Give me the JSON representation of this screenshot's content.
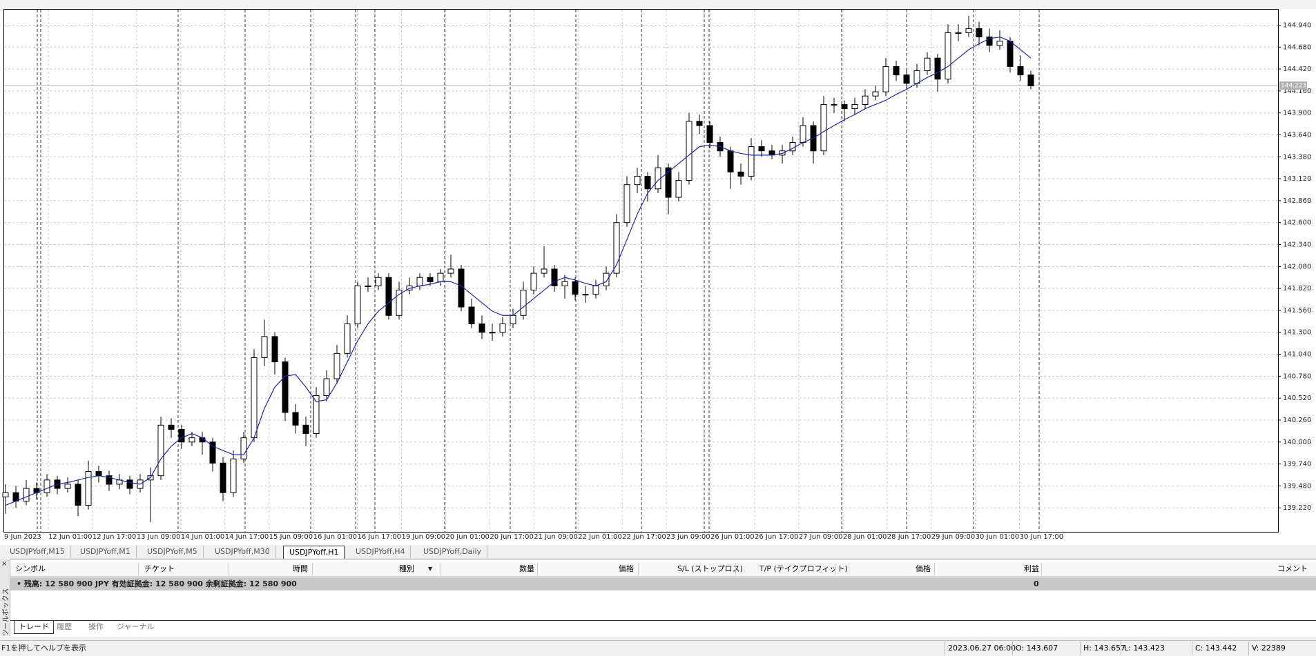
{
  "chart_data": {
    "type": "candlestick",
    "x_labels": [
      "9 Jun 2023",
      "12 Jun 01:00",
      "12 Jun 17:00",
      "13 Jun 09:00",
      "14 Jun 01:00",
      "14 Jun 17:00",
      "15 Jun 09:00",
      "16 Jun 01:00",
      "16 Jun 17:00",
      "19 Jun 09:00",
      "20 Jun 01:00",
      "20 Jun 17:00",
      "21 Jun 09:00",
      "22 Jun 01:00",
      "22 Jun 17:00",
      "23 Jun 09:00",
      "26 Jun 01:00",
      "26 Jun 17:00",
      "27 Jun 09:00",
      "28 Jun 01:00",
      "28 Jun 17:00",
      "29 Jun 09:00",
      "30 Jun 01:00",
      "30 Jun 17:00"
    ],
    "ylim": [
      138.96,
      145.14
    ],
    "yticks": [
      {
        "value": 144.94,
        "label": "144.940"
      },
      {
        "value": 144.68,
        "label": "144.680"
      },
      {
        "value": 144.42,
        "label": "144.420"
      },
      {
        "value": 144.16,
        "label": "144.160"
      },
      {
        "value": 143.9,
        "label": "143.900"
      },
      {
        "value": 143.64,
        "label": "143.640"
      },
      {
        "value": 143.38,
        "label": "143.380"
      },
      {
        "value": 143.12,
        "label": "143.120"
      },
      {
        "value": 142.86,
        "label": "142.860"
      },
      {
        "value": 142.6,
        "label": "142.600"
      },
      {
        "value": 142.34,
        "label": "142.340"
      },
      {
        "value": 142.08,
        "label": "142.080"
      },
      {
        "value": 141.82,
        "label": "141.820"
      },
      {
        "value": 141.56,
        "label": "141.560"
      },
      {
        "value": 141.3,
        "label": "141.300"
      },
      {
        "value": 141.04,
        "label": "141.040"
      },
      {
        "value": 140.78,
        "label": "140.780"
      },
      {
        "value": 140.52,
        "label": "140.520"
      },
      {
        "value": 140.26,
        "label": "140.260"
      },
      {
        "value": 140.0,
        "label": "140.000"
      },
      {
        "value": 139.74,
        "label": "139.740"
      },
      {
        "value": 139.48,
        "label": "139.480"
      },
      {
        "value": 139.22,
        "label": "139.220"
      }
    ],
    "grid": true,
    "current_price": 144.223,
    "candle_color": "#000000",
    "ma_color": "#1f1fbf",
    "candles": [
      [
        139.35,
        139.5,
        139.15,
        139.4
      ],
      [
        139.4,
        139.48,
        139.22,
        139.3
      ],
      [
        139.3,
        139.55,
        139.25,
        139.45
      ],
      [
        139.45,
        139.52,
        139.32,
        139.4
      ],
      [
        139.4,
        139.62,
        139.35,
        139.55
      ],
      [
        139.55,
        139.6,
        139.38,
        139.45
      ],
      [
        139.45,
        139.58,
        139.4,
        139.5
      ],
      [
        139.5,
        139.55,
        139.12,
        139.25
      ],
      [
        139.25,
        139.78,
        139.2,
        139.65
      ],
      [
        139.65,
        139.72,
        139.52,
        139.6
      ],
      [
        139.6,
        139.66,
        139.42,
        139.5
      ],
      [
        139.5,
        139.62,
        139.44,
        139.55
      ],
      [
        139.55,
        139.6,
        139.38,
        139.45
      ],
      [
        139.45,
        139.62,
        139.4,
        139.55
      ],
      [
        139.55,
        139.7,
        139.05,
        139.6
      ],
      [
        139.6,
        140.3,
        139.55,
        140.2
      ],
      [
        140.2,
        140.28,
        140.05,
        140.15
      ],
      [
        140.15,
        140.2,
        139.92,
        140.0
      ],
      [
        140.0,
        140.12,
        139.95,
        140.05
      ],
      [
        140.05,
        140.12,
        139.85,
        140.0
      ],
      [
        140.0,
        140.05,
        139.65,
        139.75
      ],
      [
        139.75,
        139.82,
        139.3,
        139.4
      ],
      [
        139.4,
        139.9,
        139.35,
        139.8
      ],
      [
        139.8,
        140.12,
        139.75,
        140.05
      ],
      [
        140.05,
        141.1,
        140.0,
        141.0
      ],
      [
        141.0,
        141.45,
        140.9,
        141.25
      ],
      [
        141.25,
        141.3,
        140.8,
        140.95
      ],
      [
        140.95,
        141.0,
        140.25,
        140.35
      ],
      [
        140.35,
        140.45,
        140.1,
        140.2
      ],
      [
        140.2,
        140.3,
        139.95,
        140.1
      ],
      [
        140.1,
        140.65,
        140.05,
        140.55
      ],
      [
        140.55,
        140.85,
        140.48,
        140.75
      ],
      [
        140.75,
        141.15,
        140.7,
        141.05
      ],
      [
        141.05,
        141.5,
        141.0,
        141.4
      ],
      [
        141.4,
        141.9,
        141.35,
        141.85
      ],
      [
        141.85,
        141.95,
        141.78,
        141.85
      ],
      [
        141.85,
        142.0,
        141.8,
        141.95
      ],
      [
        141.95,
        142.0,
        141.45,
        141.5
      ],
      [
        141.5,
        141.9,
        141.45,
        141.8
      ],
      [
        141.8,
        141.95,
        141.75,
        141.85
      ],
      [
        141.85,
        142.0,
        141.8,
        141.95
      ],
      [
        141.95,
        142.0,
        141.85,
        141.9
      ],
      [
        141.9,
        142.05,
        141.85,
        142.0
      ],
      [
        142.0,
        142.22,
        141.95,
        142.05
      ],
      [
        142.05,
        142.1,
        141.55,
        141.6
      ],
      [
        141.6,
        141.7,
        141.35,
        141.4
      ],
      [
        141.4,
        141.5,
        141.22,
        141.3
      ],
      [
        141.3,
        141.4,
        141.2,
        141.3
      ],
      [
        141.3,
        141.48,
        141.25,
        141.4
      ],
      [
        141.4,
        141.58,
        141.35,
        141.5
      ],
      [
        141.5,
        141.9,
        141.45,
        141.8
      ],
      [
        141.8,
        142.08,
        141.75,
        142.0
      ],
      [
        142.0,
        142.32,
        141.95,
        142.05
      ],
      [
        142.05,
        142.1,
        141.78,
        141.85
      ],
      [
        141.85,
        141.98,
        141.7,
        141.9
      ],
      [
        141.9,
        141.95,
        141.68,
        141.75
      ],
      [
        141.75,
        141.85,
        141.65,
        141.75
      ],
      [
        141.75,
        141.92,
        141.7,
        141.85
      ],
      [
        141.85,
        142.08,
        141.8,
        142.0
      ],
      [
        142.0,
        142.7,
        141.95,
        142.6
      ],
      [
        142.6,
        143.15,
        142.55,
        143.05
      ],
      [
        143.05,
        143.25,
        142.95,
        143.15
      ],
      [
        143.15,
        143.2,
        142.85,
        143.0
      ],
      [
        143.0,
        143.4,
        142.95,
        143.25
      ],
      [
        143.25,
        143.3,
        142.7,
        142.9
      ],
      [
        142.9,
        143.2,
        142.85,
        143.1
      ],
      [
        143.1,
        143.9,
        143.05,
        143.8
      ],
      [
        143.8,
        143.88,
        143.65,
        143.75
      ],
      [
        143.75,
        143.8,
        143.48,
        143.55
      ],
      [
        143.55,
        143.62,
        143.38,
        143.45
      ],
      [
        143.45,
        143.5,
        143.0,
        143.2
      ],
      [
        143.2,
        143.3,
        143.05,
        143.15
      ],
      [
        143.15,
        143.6,
        143.1,
        143.5
      ],
      [
        143.5,
        143.58,
        143.38,
        143.45
      ],
      [
        143.45,
        143.52,
        143.35,
        143.4
      ],
      [
        143.4,
        143.52,
        143.3,
        143.45
      ],
      [
        143.45,
        143.62,
        143.4,
        143.55
      ],
      [
        143.55,
        143.85,
        143.5,
        143.75
      ],
      [
        143.75,
        143.8,
        143.3,
        143.45
      ],
      [
        143.45,
        144.1,
        143.4,
        144.0
      ],
      [
        144.0,
        144.08,
        143.9,
        144.0
      ],
      [
        144.0,
        144.05,
        143.8,
        143.95
      ],
      [
        143.95,
        144.08,
        143.88,
        144.0
      ],
      [
        144.0,
        144.18,
        143.95,
        144.1
      ],
      [
        144.1,
        144.22,
        144.05,
        144.15
      ],
      [
        144.15,
        144.55,
        144.1,
        144.45
      ],
      [
        144.45,
        144.52,
        144.28,
        144.35
      ],
      [
        144.35,
        144.42,
        144.18,
        144.25
      ],
      [
        144.25,
        144.48,
        144.2,
        144.4
      ],
      [
        144.4,
        144.62,
        144.35,
        144.55
      ],
      [
        144.55,
        144.6,
        144.15,
        144.3
      ],
      [
        144.3,
        144.95,
        144.25,
        144.85
      ],
      [
        144.85,
        144.95,
        144.75,
        144.85
      ],
      [
        144.85,
        145.05,
        144.8,
        144.9
      ],
      [
        144.9,
        144.98,
        144.7,
        144.8
      ],
      [
        144.8,
        144.9,
        144.62,
        144.7
      ],
      [
        144.7,
        144.88,
        144.65,
        144.75
      ],
      [
        144.75,
        144.8,
        144.38,
        144.45
      ],
      [
        144.45,
        144.58,
        144.28,
        144.35
      ],
      [
        144.35,
        144.4,
        144.18,
        144.22
      ]
    ],
    "ma": [
      139.25,
      139.3,
      139.35,
      139.4,
      139.45,
      139.5,
      139.52,
      139.55,
      139.58,
      139.6,
      139.58,
      139.55,
      139.52,
      139.5,
      139.58,
      139.8,
      139.95,
      140.05,
      140.1,
      140.05,
      139.95,
      139.9,
      139.85,
      139.85,
      140.05,
      140.4,
      140.65,
      140.78,
      140.8,
      140.65,
      140.48,
      140.5,
      140.7,
      140.95,
      141.2,
      141.4,
      141.55,
      141.65,
      141.75,
      141.82,
      141.85,
      141.87,
      141.9,
      141.9,
      141.85,
      141.75,
      141.65,
      141.55,
      141.5,
      141.5,
      141.6,
      141.7,
      141.8,
      141.9,
      141.95,
      141.92,
      141.88,
      141.85,
      141.9,
      142.1,
      142.4,
      142.7,
      142.95,
      143.1,
      143.2,
      143.3,
      143.4,
      143.5,
      143.52,
      143.5,
      143.45,
      143.42,
      143.4,
      143.4,
      143.4,
      143.42,
      143.48,
      143.55,
      143.6,
      143.68,
      143.75,
      143.82,
      143.88,
      143.95,
      144.0,
      144.05,
      144.12,
      144.18,
      144.25,
      144.32,
      144.38,
      144.45,
      144.55,
      144.65,
      144.72,
      144.78,
      144.8,
      144.75,
      144.65,
      144.55
    ]
  },
  "chart_tabs": [
    "USDJPYoff,M15",
    "USDJPYoff,M1",
    "USDJPYoff,M5",
    "USDJPYoff,M30",
    "USDJPYoff,H1",
    "USDJPYoff,H4",
    "USDJPYoff,Daily"
  ],
  "terminal": {
    "side_title": "ツールボックス",
    "columns": [
      "シンボル",
      "チケット",
      "時間",
      "種別",
      "数量",
      "価格",
      "S/L (ストップロス)",
      "T/P (テイクプロフィット)",
      "価格",
      "利益",
      "コメント"
    ],
    "balance": "残高: 12 580 900 JPY  有効証拠金: 12 580 900  余剰証拠金: 12 580 900",
    "profit": "0",
    "tabs": [
      "トレード",
      "履歴",
      "操作",
      "ジャーナル"
    ]
  },
  "status": {
    "help": "F1を押してヘルプを表示",
    "time": "2023.06.27 06:00",
    "open": "O: 143.607",
    "high": "H: 143.657",
    "low": "L: 143.423",
    "close": "C: 143.442",
    "volume": "V: 22389"
  }
}
